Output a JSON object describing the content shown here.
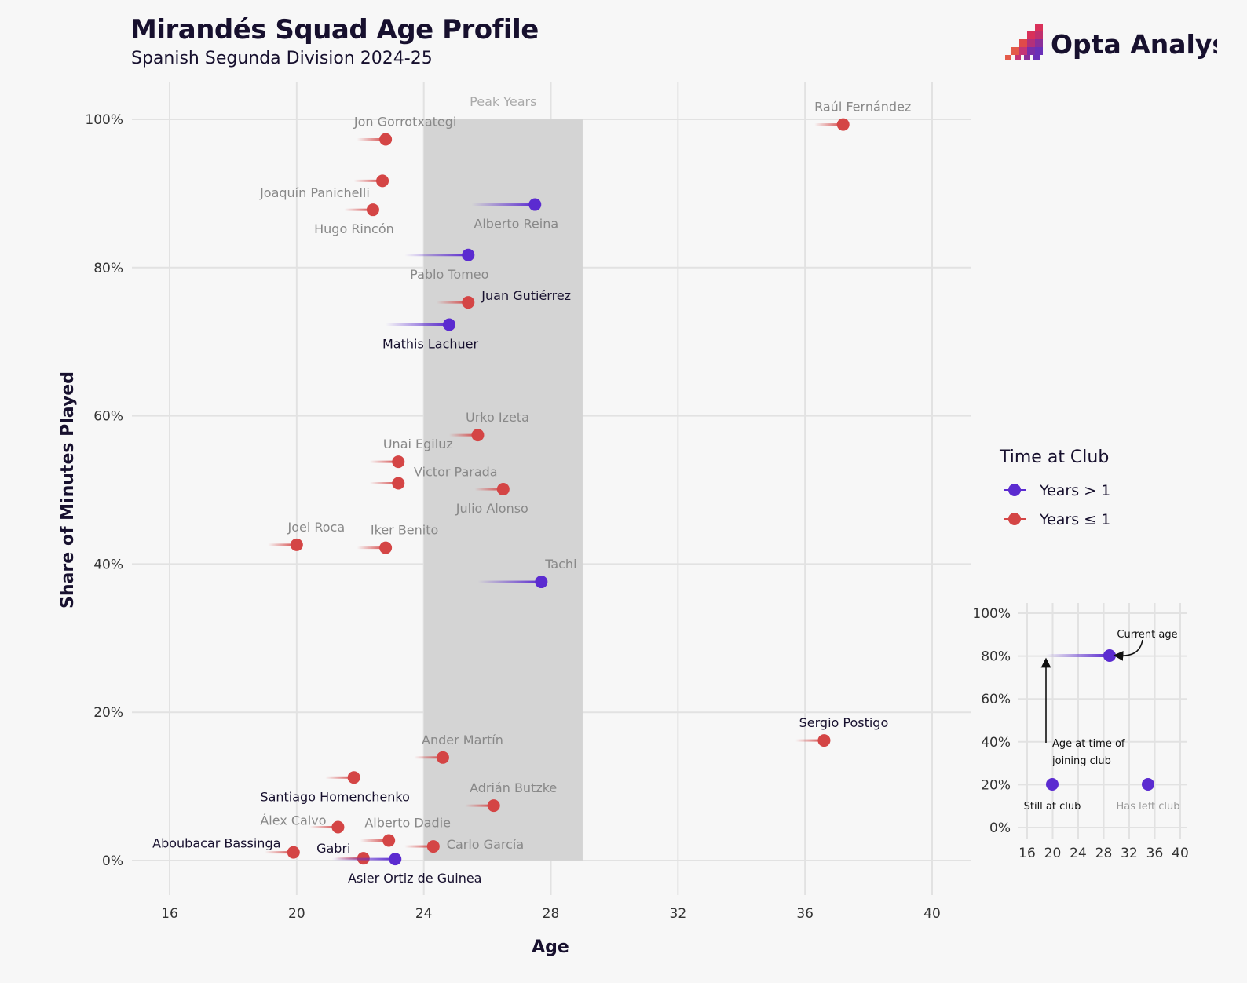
{
  "header": {
    "title": "Mirandés Squad Age Profile",
    "subtitle": "Spanish Segunda Division 2024-25",
    "logo_text": "Opta Analyst"
  },
  "colors": {
    "purple": "#5b2bd0",
    "red": "#d44545",
    "peak_band": "#d4d4d4",
    "background": "#f7f7f7"
  },
  "chart_data": {
    "type": "scatter",
    "xlabel": "Age",
    "ylabel": "Share of Minutes Played",
    "xlim": [
      15,
      40.5
    ],
    "ylim": [
      0,
      100
    ],
    "x_ticks": [
      16,
      20,
      24,
      28,
      32,
      36,
      40
    ],
    "y_ticks": [
      0,
      20,
      40,
      60,
      80,
      100
    ],
    "y_tick_labels": [
      "0%",
      "20%",
      "40%",
      "60%",
      "80%",
      "100%"
    ],
    "peak_band": {
      "label": "Peak Years",
      "x_start": 24,
      "x_end": 29
    },
    "legend": {
      "title": "Time at Club",
      "placement": "right",
      "entries": [
        {
          "label": "Years > 1",
          "color": "#5b2bd0",
          "key": "long"
        },
        {
          "label": "Years ≤ 1",
          "color": "#d44545",
          "key": "short"
        }
      ]
    },
    "players": [
      {
        "name": "Raúl Fernández",
        "age": 37.2,
        "joined": 36.3,
        "share": 99.3,
        "group": "short",
        "status": "left",
        "label_dx": 25,
        "label_dy": -17,
        "anchor": "middle"
      },
      {
        "name": "Jon Gorrotxategi",
        "age": 22.8,
        "joined": 21.9,
        "share": 97.3,
        "group": "short",
        "status": "left",
        "label_dx": 25,
        "label_dy": -17,
        "anchor": "middle"
      },
      {
        "name": "",
        "age": 22.7,
        "joined": 21.8,
        "share": 91.7,
        "group": "short",
        "status": "left"
      },
      {
        "name": "Joaquín Panichelli",
        "age": 22.4,
        "joined": 21.5,
        "share": 87.8,
        "group": "short",
        "status": "left",
        "label_dx": -74,
        "label_dy": -16,
        "anchor": "middle"
      },
      {
        "name": "Hugo Rincón",
        "age": 22.4,
        "joined": 21.5,
        "share": 87.8,
        "group": "short",
        "status": "left",
        "label_dx": -24,
        "label_dy": 30,
        "anchor": "middle",
        "no_dot": true
      },
      {
        "name": "Alberto Reina",
        "age": 27.5,
        "joined": 25.5,
        "share": 88.5,
        "group": "long",
        "status": "left",
        "label_dx": -24,
        "label_dy": 30,
        "anchor": "middle"
      },
      {
        "name": "Pablo Tomeo",
        "age": 25.4,
        "joined": 23.4,
        "share": 81.7,
        "group": "long",
        "status": "left",
        "label_dx": -24,
        "label_dy": 30,
        "anchor": "middle"
      },
      {
        "name": "Juan Gutiérrez",
        "age": 25.4,
        "joined": 24.4,
        "share": 75.3,
        "group": "short",
        "status": "still",
        "label_dx": 17,
        "label_dy": -3,
        "anchor": "start"
      },
      {
        "name": "Mathis Lachuer",
        "age": 24.8,
        "joined": 22.8,
        "share": 72.3,
        "group": "long",
        "status": "still",
        "label_dx": -24,
        "label_dy": 30,
        "anchor": "middle"
      },
      {
        "name": "Urko Izeta",
        "age": 25.7,
        "joined": 24.8,
        "share": 57.4,
        "group": "short",
        "status": "left",
        "label_dx": 25,
        "label_dy": -17,
        "anchor": "middle"
      },
      {
        "name": "Unai Egiluz",
        "age": 23.2,
        "joined": 22.3,
        "share": 53.8,
        "group": "short",
        "status": "left",
        "label_dx": 25,
        "label_dy": -17,
        "anchor": "middle"
      },
      {
        "name": "Victor Parada",
        "age": 23.2,
        "joined": 22.3,
        "share": 50.9,
        "group": "short",
        "status": "left",
        "label_dx": 73,
        "label_dy": -9,
        "anchor": "middle"
      },
      {
        "name": "Julio Alonso",
        "age": 26.5,
        "joined": 25.6,
        "share": 50.1,
        "group": "short",
        "status": "left",
        "label_dx": -14,
        "label_dy": 30,
        "anchor": "middle"
      },
      {
        "name": "Joel Roca",
        "age": 20.0,
        "joined": 19.1,
        "share": 42.6,
        "group": "short",
        "status": "left",
        "label_dx": 25,
        "label_dy": -17,
        "anchor": "middle"
      },
      {
        "name": "Iker Benito",
        "age": 22.8,
        "joined": 21.9,
        "share": 42.2,
        "group": "short",
        "status": "left",
        "label_dx": 24,
        "label_dy": -17,
        "anchor": "middle"
      },
      {
        "name": "Tachi",
        "age": 27.7,
        "joined": 25.7,
        "share": 37.6,
        "group": "long",
        "status": "left",
        "label_dx": 25,
        "label_dy": -17,
        "anchor": "middle"
      },
      {
        "name": "Sergio Postigo",
        "age": 36.6,
        "joined": 35.7,
        "share": 16.2,
        "group": "short",
        "status": "still",
        "label_dx": 25,
        "label_dy": -17,
        "anchor": "middle"
      },
      {
        "name": "Ander Martín",
        "age": 24.6,
        "joined": 23.7,
        "share": 13.9,
        "group": "short",
        "status": "left",
        "label_dx": 25,
        "label_dy": -17,
        "anchor": "middle"
      },
      {
        "name": "Santiago Homenchenko",
        "age": 21.8,
        "joined": 20.9,
        "share": 11.2,
        "group": "short",
        "status": "still",
        "label_dx": -24,
        "label_dy": 30,
        "anchor": "middle"
      },
      {
        "name": "Adrián Butzke",
        "age": 26.2,
        "joined": 25.3,
        "share": 7.4,
        "group": "short",
        "status": "left",
        "label_dx": 25,
        "label_dy": -17,
        "anchor": "middle"
      },
      {
        "name": "Álex Calvo",
        "age": 21.3,
        "joined": 20.4,
        "share": 4.5,
        "group": "short",
        "status": "left",
        "label_dx": -57,
        "label_dy": -3,
        "anchor": "middle"
      },
      {
        "name": "Alberto Dadie",
        "age": 22.9,
        "joined": 22.0,
        "share": 2.7,
        "group": "short",
        "status": "left",
        "label_dx": 24,
        "label_dy": -17,
        "anchor": "middle"
      },
      {
        "name": "Carlo García",
        "age": 24.3,
        "joined": 23.4,
        "share": 1.9,
        "group": "short",
        "status": "left",
        "label_dx": 17,
        "label_dy": 3,
        "anchor": "start"
      },
      {
        "name": "Aboubacar Bassinga",
        "age": 19.9,
        "joined": 19.0,
        "share": 1.1,
        "group": "short",
        "status": "still",
        "label_dx": -98,
        "label_dy": -6,
        "anchor": "middle"
      },
      {
        "name": "Gabri",
        "age": 22.1,
        "joined": 21.2,
        "share": 0.3,
        "group": "short",
        "status": "still",
        "label_dx": -38,
        "label_dy": -7,
        "anchor": "middle"
      },
      {
        "name": "Asier Ortiz de Guinea",
        "age": 23.1,
        "joined": 21.1,
        "share": 0.2,
        "group": "long",
        "status": "still",
        "label_dx": 25,
        "label_dy": 30,
        "anchor": "middle"
      }
    ]
  },
  "explainer": {
    "y_tick_labels": [
      "0%",
      "20%",
      "40%",
      "60%",
      "80%",
      "100%"
    ],
    "x_ticks": [
      16,
      20,
      24,
      28,
      32,
      36,
      40
    ],
    "current_age_label": "Current age",
    "joining_label_line1": "Age at time of",
    "joining_label_line2": "joining club",
    "still_label": "Still at club",
    "left_label": "Has left club"
  }
}
